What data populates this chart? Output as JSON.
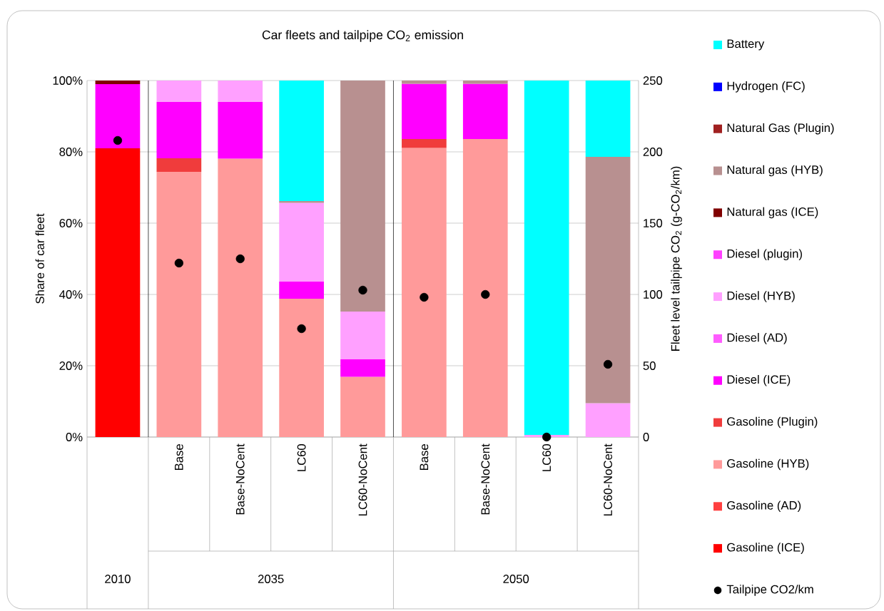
{
  "chart_data": {
    "type": "bar",
    "stacked": true,
    "title": "Car fleets and tailpipe CO$_{2}$ emission",
    "ylabel": "Share of car fleet",
    "y2label": "Fleet level tailpipe CO$_{2}$ (g-CO$_{2}$/km)",
    "categories": [
      null,
      "Base",
      "Base-NoCent",
      "LC60",
      "LC60-NoCent",
      "Base",
      "Base-NoCent",
      "LC60",
      "LC60-NoCent"
    ],
    "annotations": [
      "2010",
      "2035",
      "2050"
    ],
    "ylim": [
      0,
      100
    ],
    "yticks": [
      {
        "value": 0,
        "label": "0%"
      },
      {
        "value": 20,
        "label": "20%"
      },
      {
        "value": 40,
        "label": "40%"
      },
      {
        "value": 60,
        "label": "60%"
      },
      {
        "value": 80,
        "label": "80%"
      },
      {
        "value": 100,
        "label": "100%"
      }
    ],
    "y2lim": [
      0,
      250
    ],
    "y2ticks": [
      0,
      50,
      100,
      150,
      200,
      250
    ],
    "grid": "y",
    "legend": "right",
    "marker": "circle",
    "series": [
      {
        "name": "Gasoline (ICE)",
        "color": "#ff0000",
        "values": [
          81,
          0,
          0,
          0,
          0,
          0,
          0,
          0,
          0
        ]
      },
      {
        "name": "Gasoline (AD)",
        "color": "#ff4040",
        "values": [
          0,
          0,
          0,
          0,
          0,
          0,
          0,
          0,
          0
        ]
      },
      {
        "name": "Gasoline (HYB)",
        "color": "#ff9a9a",
        "values": [
          0,
          74.4,
          78.1,
          38.8,
          16.9,
          81.1,
          83.6,
          0,
          0
        ]
      },
      {
        "name": "Gasoline (Plugin)",
        "color": "#f03c3c",
        "values": [
          0,
          3.8,
          0,
          0,
          0,
          2.5,
          0,
          0,
          0
        ]
      },
      {
        "name": "Diesel (ICE)",
        "color": "#ff00ff",
        "values": [
          18,
          15.8,
          15.9,
          4.8,
          4.9,
          15.5,
          15.5,
          0,
          0
        ]
      },
      {
        "name": "Diesel (AD)",
        "color": "#ff5cff",
        "values": [
          0,
          0,
          0,
          0,
          0,
          0,
          0,
          0,
          0
        ]
      },
      {
        "name": "Diesel (HYB)",
        "color": "#ffa0ff",
        "values": [
          0,
          6,
          6,
          22.1,
          13.4,
          0,
          0,
          0.6,
          9.5
        ]
      },
      {
        "name": "Diesel (plugin)",
        "color": "#ff40ff",
        "values": [
          0,
          0,
          0,
          0,
          0,
          0,
          0,
          0,
          0
        ]
      },
      {
        "name": "Natural gas (ICE)",
        "color": "#800000",
        "values": [
          1,
          0,
          0,
          0,
          0,
          0,
          0,
          0,
          0
        ]
      },
      {
        "name": "Natural gas (HYB)",
        "color": "#b89090",
        "values": [
          0,
          0,
          0,
          0.5,
          64.8,
          0.9,
          0.9,
          0,
          69.1
        ]
      },
      {
        "name": "Natural Gas (Plugin)",
        "color": "#a02020",
        "values": [
          0,
          0,
          0,
          0,
          0,
          0,
          0,
          0,
          0
        ]
      },
      {
        "name": "Hydrogen (FC)",
        "color": "#0000ff",
        "values": [
          0,
          0,
          0,
          0,
          0,
          0,
          0,
          0,
          0
        ]
      },
      {
        "name": "Battery",
        "color": "#00ffff",
        "values": [
          0,
          0,
          0,
          33.8,
          0,
          0,
          0,
          99.4,
          21.4
        ]
      },
      {
        "name": "Tailpipe CO2/km",
        "type": "scatter",
        "axis": "y2",
        "color": "#000000",
        "values": [
          208,
          122,
          125,
          76,
          103,
          98,
          100,
          0,
          51
        ]
      }
    ]
  }
}
